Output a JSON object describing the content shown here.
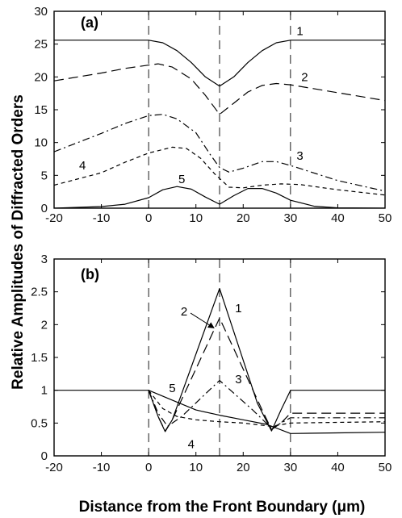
{
  "figure": {
    "ylabel": "Relative Amplitudes of Diffracted Orders",
    "xlabel": "Distance from the Front Boundary  (μm)"
  },
  "chart_data": [
    {
      "type": "line",
      "panel_label": "(a)",
      "xlim": [
        -20,
        50
      ],
      "ylim": [
        0,
        30
      ],
      "xticks": [
        -20,
        -10,
        0,
        10,
        20,
        30,
        40,
        50
      ],
      "yticks": [
        0,
        5,
        10,
        15,
        20,
        25,
        30
      ],
      "xtick_labels": [
        "-20",
        "-10",
        "0",
        "10",
        "20",
        "30",
        "40",
        "50"
      ],
      "ytick_labels": [
        "0",
        "5",
        "10",
        "15",
        "20",
        "25",
        "30"
      ],
      "vlines": [
        0,
        15,
        30
      ],
      "series": [
        {
          "name": "1",
          "style": "solid",
          "points": [
            [
              -20,
              25.6
            ],
            [
              0,
              25.6
            ],
            [
              3,
              25.2
            ],
            [
              6,
              24
            ],
            [
              9,
              22.2
            ],
            [
              12,
              20
            ],
            [
              15,
              18.6
            ],
            [
              18,
              20
            ],
            [
              21,
              22.2
            ],
            [
              24,
              24
            ],
            [
              27,
              25.2
            ],
            [
              30,
              25.6
            ],
            [
              50,
              25.6
            ]
          ]
        },
        {
          "name": "2",
          "style": "long-dash",
          "points": [
            [
              -20,
              19.4
            ],
            [
              -10,
              20.6
            ],
            [
              -5,
              21.3
            ],
            [
              0,
              21.8
            ],
            [
              2,
              22
            ],
            [
              5,
              21.5
            ],
            [
              9,
              19.7
            ],
            [
              12,
              17.2
            ],
            [
              15,
              14.3
            ],
            [
              18,
              16
            ],
            [
              21,
              17.7
            ],
            [
              24,
              18.7
            ],
            [
              27,
              19
            ],
            [
              30,
              18.8
            ],
            [
              40,
              17.6
            ],
            [
              50,
              16.4
            ]
          ]
        },
        {
          "name": "3",
          "style": "dash-dot",
          "points": [
            [
              -20,
              8.6
            ],
            [
              -10,
              11.4
            ],
            [
              -5,
              12.9
            ],
            [
              0,
              14.1
            ],
            [
              3,
              14.3
            ],
            [
              6,
              13.6
            ],
            [
              10,
              11.5
            ],
            [
              13,
              8.2
            ],
            [
              15,
              6.2
            ],
            [
              17,
              5.5
            ],
            [
              20,
              6.1
            ],
            [
              24,
              7.1
            ],
            [
              27,
              7.1
            ],
            [
              30,
              6.5
            ],
            [
              40,
              4.2
            ],
            [
              50,
              2.6
            ]
          ]
        },
        {
          "name": "4",
          "style": "short-dash",
          "points": [
            [
              -20,
              3.5
            ],
            [
              -10,
              5.4
            ],
            [
              -5,
              7
            ],
            [
              0,
              8.4
            ],
            [
              5,
              9.3
            ],
            [
              8,
              9.1
            ],
            [
              11,
              7.6
            ],
            [
              14,
              5.2
            ],
            [
              17,
              3.2
            ],
            [
              20,
              3.1
            ],
            [
              24,
              3.5
            ],
            [
              28,
              3.7
            ],
            [
              32,
              3.6
            ],
            [
              40,
              2.8
            ],
            [
              50,
              2
            ]
          ]
        },
        {
          "name": "5",
          "style": "solid",
          "points": [
            [
              -20,
              0
            ],
            [
              -10,
              0.25
            ],
            [
              -5,
              0.6
            ],
            [
              0,
              1.6
            ],
            [
              3,
              2.8
            ],
            [
              6,
              3.3
            ],
            [
              9,
              2.9
            ],
            [
              12,
              1.7
            ],
            [
              15,
              0.6
            ],
            [
              18,
              1.9
            ],
            [
              21,
              3
            ],
            [
              24,
              3
            ],
            [
              27,
              2.3
            ],
            [
              30,
              1.2
            ],
            [
              35,
              0.3
            ],
            [
              40,
              0.05
            ],
            [
              50,
              0
            ]
          ]
        }
      ],
      "curve_labels": [
        {
          "text": "1",
          "x": 32,
          "y": 27
        },
        {
          "text": "2",
          "x": 33,
          "y": 20
        },
        {
          "text": "3",
          "x": 32,
          "y": 8
        },
        {
          "text": "4",
          "x": -14,
          "y": 6.5
        },
        {
          "text": "5",
          "x": 7,
          "y": 4.4
        }
      ]
    },
    {
      "type": "line",
      "panel_label": "(b)",
      "xlim": [
        -20,
        50
      ],
      "ylim": [
        0,
        3
      ],
      "xticks": [
        -20,
        -10,
        0,
        10,
        20,
        30,
        40,
        50
      ],
      "yticks": [
        0,
        0.5,
        1,
        1.5,
        2,
        2.5,
        3
      ],
      "xtick_labels": [
        "-20",
        "-10",
        "0",
        "10",
        "20",
        "30",
        "40",
        "50"
      ],
      "ytick_labels": [
        "0",
        "0.5",
        "1",
        "1.5",
        "2",
        "2.5",
        "3"
      ],
      "vlines": [
        0,
        15,
        30
      ],
      "series": [
        {
          "name": "1",
          "style": "solid",
          "points": [
            [
              -20,
              1
            ],
            [
              0,
              1
            ],
            [
              2,
              0.6
            ],
            [
              3.5,
              0.37
            ],
            [
              5,
              0.55
            ],
            [
              15,
              2.55
            ],
            [
              23,
              0.8
            ],
            [
              26,
              0.38
            ],
            [
              28,
              0.7
            ],
            [
              30,
              1
            ],
            [
              50,
              1
            ]
          ]
        },
        {
          "name": "2",
          "style": "long-dash",
          "points": [
            [
              0,
              1
            ],
            [
              2,
              0.6
            ],
            [
              3.5,
              0.38
            ],
            [
              5,
              0.55
            ],
            [
              15,
              2.1
            ],
            [
              24,
              0.7
            ],
            [
              26,
              0.4
            ],
            [
              28,
              0.5
            ],
            [
              30,
              0.65
            ],
            [
              50,
              0.65
            ]
          ]
        },
        {
          "name": "3",
          "style": "dash-dot",
          "points": [
            [
              0,
              1
            ],
            [
              2,
              0.65
            ],
            [
              4,
              0.45
            ],
            [
              7,
              0.6
            ],
            [
              15,
              1.15
            ],
            [
              22,
              0.7
            ],
            [
              26,
              0.42
            ],
            [
              28,
              0.5
            ],
            [
              30,
              0.58
            ],
            [
              50,
              0.58
            ]
          ]
        },
        {
          "name": "4",
          "style": "short-dash",
          "points": [
            [
              0,
              1
            ],
            [
              3,
              0.72
            ],
            [
              6,
              0.6
            ],
            [
              10,
              0.55
            ],
            [
              15,
              0.52
            ],
            [
              20,
              0.5
            ],
            [
              26,
              0.45
            ],
            [
              30,
              0.5
            ],
            [
              50,
              0.52
            ]
          ]
        },
        {
          "name": "5",
          "style": "solid",
          "points": [
            [
              0,
              1
            ],
            [
              5,
              0.85
            ],
            [
              10,
              0.7
            ],
            [
              15,
              0.62
            ],
            [
              20,
              0.55
            ],
            [
              25,
              0.48
            ],
            [
              30,
              0.34
            ],
            [
              40,
              0.35
            ],
            [
              50,
              0.36
            ]
          ]
        }
      ],
      "curve_labels": [
        {
          "text": "1",
          "x": 19,
          "y": 2.25
        },
        {
          "text": "2",
          "x": 7.5,
          "y": 2.2
        },
        {
          "text": "3",
          "x": 19,
          "y": 1.17
        },
        {
          "text": "4",
          "x": 9,
          "y": 0.18
        },
        {
          "text": "5",
          "x": 5,
          "y": 1.03
        }
      ]
    }
  ]
}
